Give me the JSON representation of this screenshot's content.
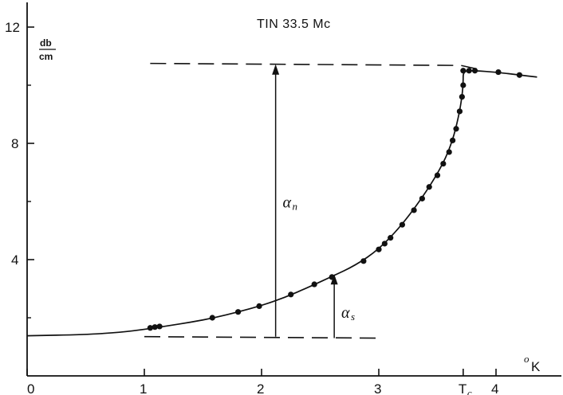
{
  "chart_data": {
    "type": "scatter",
    "title": "TIN 33.5 Mc",
    "ylabel": {
      "numerator": "db",
      "denominator": "cm"
    },
    "xlabel": {
      "degree": "o",
      "unit": "K"
    },
    "xlim": [
      0,
      4.45
    ],
    "ylim": [
      0,
      12.5
    ],
    "x_ticks": [
      {
        "value": 0,
        "label": "0"
      },
      {
        "value": 1,
        "label": "1"
      },
      {
        "value": 2,
        "label": "2"
      },
      {
        "value": 3,
        "label": "3"
      },
      {
        "value": 3.72,
        "label": "T",
        "sub": "c"
      },
      {
        "value": 4,
        "label": "4"
      }
    ],
    "y_ticks": [
      {
        "value": 4,
        "label": "4"
      },
      {
        "value": 8,
        "label": "8"
      },
      {
        "value": 12,
        "label": "12"
      }
    ],
    "y_minor_ticks": [
      2,
      6,
      10
    ],
    "points": [
      {
        "x": 1.05,
        "y": 1.65
      },
      {
        "x": 1.09,
        "y": 1.68
      },
      {
        "x": 1.13,
        "y": 1.7
      },
      {
        "x": 1.58,
        "y": 2.0
      },
      {
        "x": 1.8,
        "y": 2.2
      },
      {
        "x": 1.98,
        "y": 2.4
      },
      {
        "x": 2.25,
        "y": 2.8
      },
      {
        "x": 2.45,
        "y": 3.15
      },
      {
        "x": 2.6,
        "y": 3.4
      },
      {
        "x": 2.87,
        "y": 3.95
      },
      {
        "x": 3.0,
        "y": 4.35
      },
      {
        "x": 3.05,
        "y": 4.55
      },
      {
        "x": 3.1,
        "y": 4.75
      },
      {
        "x": 3.2,
        "y": 5.2
      },
      {
        "x": 3.3,
        "y": 5.7
      },
      {
        "x": 3.37,
        "y": 6.1
      },
      {
        "x": 3.43,
        "y": 6.5
      },
      {
        "x": 3.5,
        "y": 6.9
      },
      {
        "x": 3.55,
        "y": 7.3
      },
      {
        "x": 3.6,
        "y": 7.7
      },
      {
        "x": 3.63,
        "y": 8.1
      },
      {
        "x": 3.66,
        "y": 8.5
      },
      {
        "x": 3.69,
        "y": 9.1
      },
      {
        "x": 3.71,
        "y": 9.6
      },
      {
        "x": 3.72,
        "y": 10.0
      },
      {
        "x": 3.72,
        "y": 10.5
      },
      {
        "x": 3.77,
        "y": 10.5
      },
      {
        "x": 3.82,
        "y": 10.5
      },
      {
        "x": 4.02,
        "y": 10.45
      },
      {
        "x": 4.2,
        "y": 10.35
      }
    ],
    "fit_curve": [
      {
        "x": 0,
        "y": 1.38
      },
      {
        "x": 0.5,
        "y": 1.42
      },
      {
        "x": 0.8,
        "y": 1.5
      },
      {
        "x": 1.0,
        "y": 1.6
      },
      {
        "x": 1.2,
        "y": 1.72
      },
      {
        "x": 1.4,
        "y": 1.85
      },
      {
        "x": 1.6,
        "y": 2.0
      },
      {
        "x": 1.8,
        "y": 2.2
      },
      {
        "x": 2.0,
        "y": 2.42
      },
      {
        "x": 2.2,
        "y": 2.7
      },
      {
        "x": 2.4,
        "y": 3.05
      },
      {
        "x": 2.6,
        "y": 3.42
      },
      {
        "x": 2.8,
        "y": 3.8
      },
      {
        "x": 3.0,
        "y": 4.35
      },
      {
        "x": 3.2,
        "y": 5.2
      },
      {
        "x": 3.4,
        "y": 6.3
      },
      {
        "x": 3.55,
        "y": 7.3
      },
      {
        "x": 3.63,
        "y": 8.1
      },
      {
        "x": 3.68,
        "y": 8.9
      },
      {
        "x": 3.71,
        "y": 9.6
      },
      {
        "x": 3.72,
        "y": 10.1
      },
      {
        "x": 3.72,
        "y": 10.5
      },
      {
        "x": 3.82,
        "y": 10.5
      },
      {
        "x": 4.0,
        "y": 10.45
      },
      {
        "x": 4.2,
        "y": 10.35
      },
      {
        "x": 4.35,
        "y": 10.28
      }
    ],
    "dashed_lines": [
      {
        "name": "normal-level",
        "points": [
          {
            "x": 1.05,
            "y": 10.75
          },
          {
            "x": 3.7,
            "y": 10.68
          },
          {
            "x": 3.85,
            "y": 10.55
          }
        ]
      },
      {
        "name": "residual-level",
        "points": [
          {
            "x": 1.0,
            "y": 1.35
          },
          {
            "x": 3.0,
            "y": 1.3
          }
        ]
      }
    ],
    "arrows": [
      {
        "name": "alpha-n-arrow",
        "x": 2.12,
        "y_from": 1.35,
        "y_to": 10.72
      },
      {
        "name": "alpha-s-arrow",
        "x": 2.62,
        "y_from": 1.3,
        "y_to": 3.5
      }
    ],
    "annotations": [
      {
        "name": "alpha-n-label",
        "text": "α",
        "sub": "n",
        "x": 2.18,
        "y": 5.8
      },
      {
        "name": "alpha-s-label",
        "text": "α",
        "sub": "s",
        "x": 2.68,
        "y": 2.0
      }
    ],
    "grid": false,
    "legend": "none"
  }
}
